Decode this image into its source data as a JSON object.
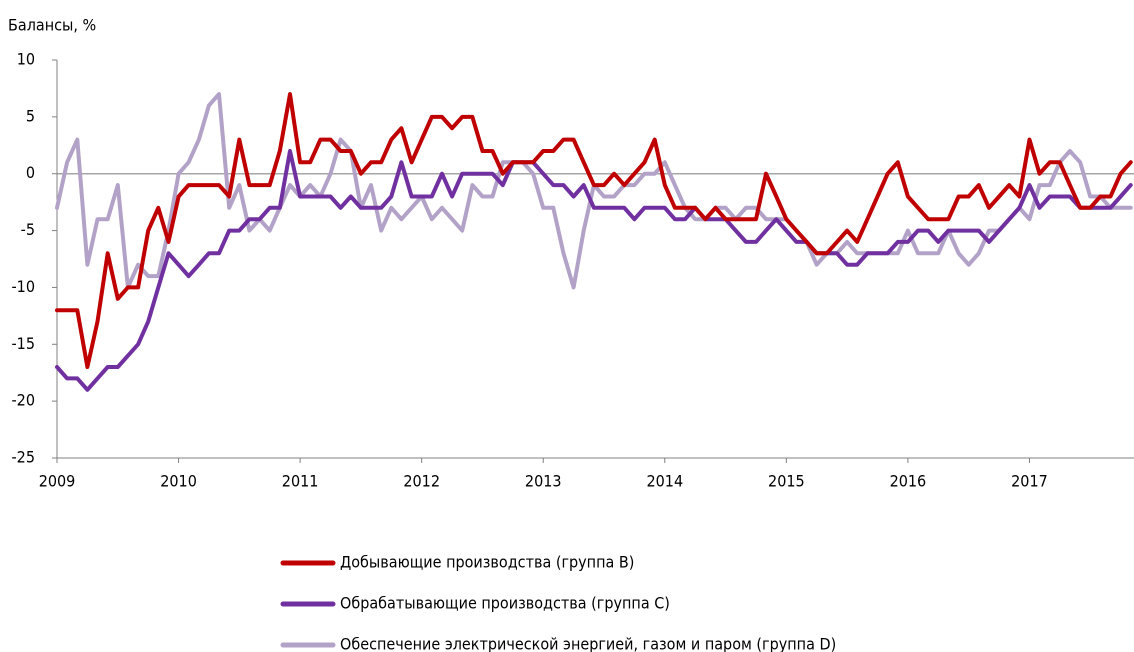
{
  "chart_data": {
    "type": "line",
    "y_label": "Балансы, %",
    "x": [
      2009,
      2009.083,
      2009.167,
      2009.25,
      2009.333,
      2009.417,
      2009.5,
      2009.583,
      2009.667,
      2009.75,
      2009.833,
      2009.917,
      2010,
      2010.083,
      2010.167,
      2010.25,
      2010.333,
      2010.417,
      2010.5,
      2010.583,
      2010.667,
      2010.75,
      2010.833,
      2010.917,
      2011,
      2011.083,
      2011.167,
      2011.25,
      2011.333,
      2011.417,
      2011.5,
      2011.583,
      2011.667,
      2011.75,
      2011.833,
      2011.917,
      2012,
      2012.083,
      2012.167,
      2012.25,
      2012.333,
      2012.417,
      2012.5,
      2012.583,
      2012.667,
      2012.75,
      2012.833,
      2012.917,
      2013,
      2013.083,
      2013.167,
      2013.25,
      2013.333,
      2013.417,
      2013.5,
      2013.583,
      2013.667,
      2013.75,
      2013.833,
      2013.917,
      2014,
      2014.083,
      2014.167,
      2014.25,
      2014.333,
      2014.417,
      2014.5,
      2014.583,
      2014.667,
      2014.75,
      2014.833,
      2014.917,
      2015,
      2015.083,
      2015.167,
      2015.25,
      2015.333,
      2015.417,
      2015.5,
      2015.583,
      2015.667,
      2015.75,
      2015.833,
      2015.917,
      2016,
      2016.083,
      2016.167,
      2016.25,
      2016.333,
      2016.417,
      2016.5,
      2016.583,
      2016.667,
      2016.75,
      2016.833,
      2016.917,
      2017,
      2017.083,
      2017.167,
      2017.25,
      2017.333,
      2017.417,
      2017.5,
      2017.583,
      2017.667,
      2017.75,
      2017.833
    ],
    "series": [
      {
        "name": "Добывающие производства (группа B)",
        "color": "#c00000",
        "values": [
          -12,
          -12,
          -12,
          -17,
          -13,
          -7,
          -11,
          -10,
          -10,
          -5,
          -3,
          -6,
          -2,
          -1,
          -1,
          -1,
          -1,
          -2,
          3,
          -1,
          -1,
          -1,
          2,
          7,
          1,
          1,
          3,
          3,
          2,
          2,
          0,
          1,
          1,
          3,
          4,
          1,
          3,
          5,
          5,
          4,
          5,
          5,
          2,
          2,
          0,
          1,
          1,
          1,
          2,
          2,
          3,
          3,
          1,
          -1,
          -1,
          0,
          -1,
          0,
          1,
          3,
          -1,
          -3,
          -3,
          -3,
          -4,
          -3,
          -4,
          -4,
          -4,
          -4,
          0,
          -2,
          -4,
          -5,
          -6,
          -7,
          -7,
          -6,
          -5,
          -6,
          -4,
          -2,
          0,
          1,
          -2,
          -3,
          -4,
          -4,
          -4,
          -2,
          -2,
          -1,
          -3,
          -2,
          -1,
          -2,
          3,
          0,
          1,
          1,
          -1,
          -3,
          -3,
          -2,
          -2,
          0,
          1
        ]
      },
      {
        "name": "Обрабатывающие производства (группа C)",
        "color": "#7030a0",
        "values": [
          -17,
          -18,
          -18,
          -19,
          -18,
          -17,
          -17,
          -16,
          -15,
          -13,
          -10,
          -7,
          -8,
          -9,
          -8,
          -7,
          -7,
          -5,
          -5,
          -4,
          -4,
          -3,
          -3,
          2,
          -2,
          -2,
          -2,
          -2,
          -3,
          -2,
          -3,
          -3,
          -3,
          -2,
          1,
          -2,
          -2,
          -2,
          0,
          -2,
          0,
          0,
          0,
          0,
          -1,
          1,
          1,
          1,
          0,
          -1,
          -1,
          -2,
          -1,
          -3,
          -3,
          -3,
          -3,
          -4,
          -3,
          -3,
          -3,
          -4,
          -4,
          -3,
          -4,
          -4,
          -4,
          -5,
          -6,
          -6,
          -5,
          -4,
          -5,
          -6,
          -6,
          -7,
          -7,
          -7,
          -8,
          -8,
          -7,
          -7,
          -7,
          -6,
          -6,
          -5,
          -5,
          -6,
          -5,
          -5,
          -5,
          -5,
          -6,
          -5,
          -4,
          -3,
          -1,
          -3,
          -2,
          -2,
          -2,
          -3,
          -3,
          -3,
          -3,
          -2,
          -1
        ]
      },
      {
        "name": "Обеспечение электрической энергией, газом и паром (группа D)",
        "color": "#b3a2c7",
        "values": [
          -3,
          1,
          3,
          -8,
          -4,
          -4,
          -1,
          -10,
          -8,
          -9,
          -9,
          -5,
          0,
          1,
          3,
          6,
          7,
          -3,
          -1,
          -5,
          -4,
          -5,
          -3,
          -1,
          -2,
          -1,
          -2,
          0,
          3,
          2,
          -3,
          -1,
          -5,
          -3,
          -4,
          -3,
          -2,
          -4,
          -3,
          -4,
          -5,
          -1,
          -2,
          -2,
          1,
          1,
          1,
          0,
          -3,
          -3,
          -7,
          -10,
          -5,
          -1,
          -2,
          -2,
          -1,
          -1,
          0,
          0,
          1,
          -1,
          -3,
          -4,
          -4,
          -3,
          -3,
          -4,
          -3,
          -3,
          -4,
          -4,
          -4,
          -5,
          -6,
          -8,
          -7,
          -7,
          -6,
          -7,
          -7,
          -7,
          -7,
          -7,
          -5,
          -7,
          -7,
          -7,
          -5,
          -7,
          -8,
          -7,
          -5,
          -5,
          -4,
          -3,
          -4,
          -1,
          -1,
          1,
          2,
          1,
          -2,
          -2,
          -3,
          -3,
          -3
        ]
      }
    ],
    "xlim": [
      2009,
      2017.86
    ],
    "xticks": [
      2009,
      2010,
      2011,
      2012,
      2013,
      2014,
      2015,
      2016,
      2017
    ],
    "ylim": [
      -25,
      10
    ],
    "yticks": [
      -25,
      -20,
      -15,
      -10,
      -5,
      0,
      5,
      10
    ]
  }
}
